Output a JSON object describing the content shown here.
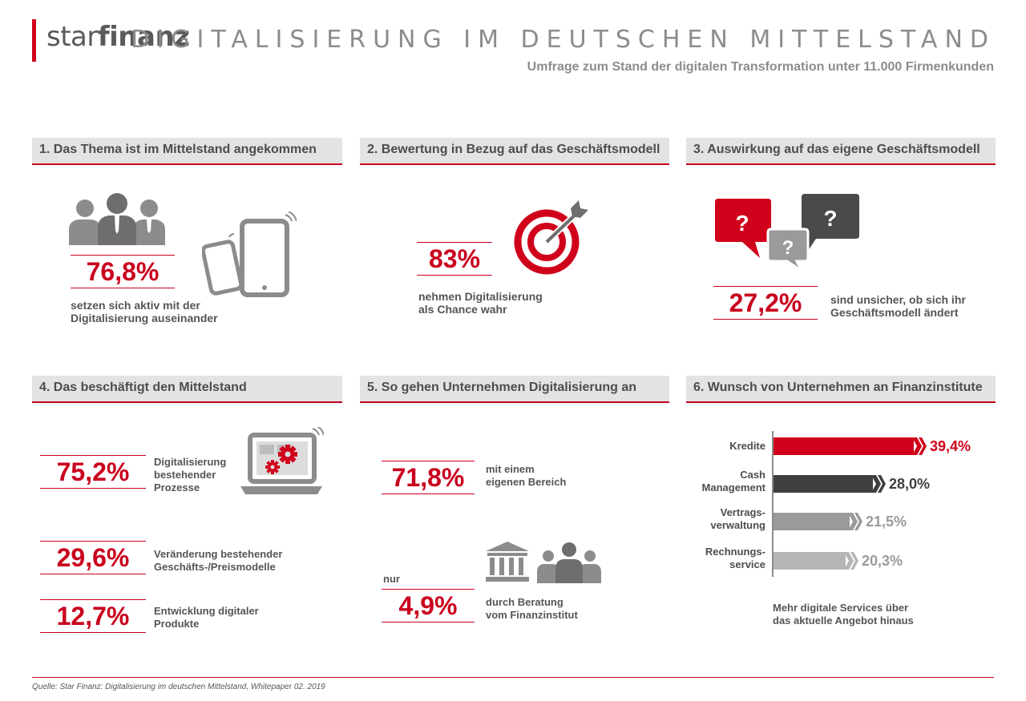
{
  "header": {
    "logo_light": "star",
    "logo_bold": "finanz",
    "title": "DIGITALISIERUNG IM DEUTSCHEN MITTELSTAND",
    "subtitle": "Umfrage zum Stand der digitalen Transformation unter 11.000 Firmenkunden"
  },
  "sections": [
    {
      "title": "1. Das Thema ist im Mittelstand angekommen",
      "stat": "76,8%",
      "desc_line1": "setzen sich aktiv mit der",
      "desc_line2": "Digitalisierung auseinander"
    },
    {
      "title": "2. Bewertung in Bezug auf das Geschäftsmodell",
      "stat": "83%",
      "desc_line1": "nehmen Digitalisierung",
      "desc_line2": "als Chance wahr"
    },
    {
      "title": "3. Auswirkung auf das eigene Geschäftsmodell",
      "stat": "27,2%",
      "desc_line1": "sind unsicher, ob sich ihr",
      "desc_line2": "Geschäftsmodell ändert"
    },
    {
      "title": "4. Das beschäftigt den Mittelstand",
      "items": [
        {
          "stat": "75,2%",
          "desc_line1": "Digitalisierung",
          "desc_line2": "bestehender",
          "desc_line3": "Prozesse"
        },
        {
          "stat": "29,6%",
          "desc_line1": "Veränderung bestehender",
          "desc_line2": "Geschäfts-/Preismodelle"
        },
        {
          "stat": "12,7%",
          "desc_line1": "Entwicklung digitaler",
          "desc_line2": "Produkte"
        }
      ]
    },
    {
      "title": "5. So gehen Unternehmen Digitalisierung an",
      "items": [
        {
          "stat": "71,8%",
          "desc_line1": "mit einem",
          "desc_line2": "eigenen Bereich"
        },
        {
          "prefix": "nur",
          "stat": "4,9%",
          "desc_line1": "durch Beratung",
          "desc_line2": "vom Finanzinstitut"
        }
      ]
    },
    {
      "title": "6. Wunsch von Unternehmen an Finanzinstitute",
      "bars": [
        {
          "label_line1": "Kredite",
          "label_line2": "",
          "value": 39.4,
          "value_label": "39,4%",
          "color": "#d0021b"
        },
        {
          "label_line1": "Cash",
          "label_line2": "Management",
          "value": 28.0,
          "value_label": "28,0%",
          "color": "#3f3f3f"
        },
        {
          "label_line1": "Vertrags-",
          "label_line2": "verwaltung",
          "value": 21.5,
          "value_label": "21,5%",
          "color": "#9a9a9a"
        },
        {
          "label_line1": "Rechnungs-",
          "label_line2": "service",
          "value": 20.3,
          "value_label": "20,3%",
          "color": "#b5b5b5"
        }
      ],
      "note_line1": "Mehr digitale Services über",
      "note_line2": "das aktuelle Angebot hinaus"
    }
  ],
  "footer": {
    "source": "Quelle: Star Finanz: Digitalisierung im deutschen Mittelstand, Whitepaper 02. 2019"
  },
  "colors": {
    "accent": "#c9001d",
    "dark_gray": "#3f3f3f",
    "mid_gray": "#7a7a7a",
    "light_gray": "#e3e3e3"
  }
}
